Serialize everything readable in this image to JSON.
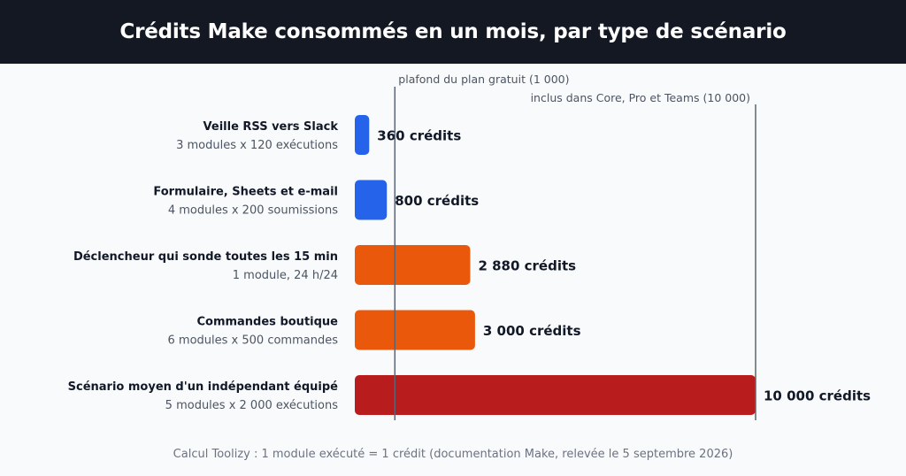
{
  "title": "Crédits Make consommés en un mois, par type de scénario",
  "footnote": "Calcul Toolizy : 1 module exécuté = 1 crédit (documentation Make, relevée le 5 septembre 2026)",
  "colors": {
    "header_bg": "#131823",
    "blue": "#2563eb",
    "orange": "#ea580c",
    "red": "#b91c1c",
    "reference_line": "#5b6472",
    "label_dark": "#111827",
    "label_muted": "#4b5563"
  },
  "chart_data": {
    "type": "bar",
    "orientation": "horizontal",
    "xlim": [
      0,
      10000
    ],
    "grid": false,
    "categories": [
      "Veille RSS vers Slack",
      "Formulaire, Sheets et e-mail",
      "Déclencheur qui sonde toutes les 15 min",
      "Commandes boutique",
      "Scénario moyen d'un indépendant équipé"
    ],
    "subtitles": [
      "3 modules x 120 exécutions",
      "4 modules x 200 soumissions",
      "1 module, 24 h/24",
      "6 modules x 500 commandes",
      "5 modules x 2 000 exécutions"
    ],
    "values": [
      360,
      800,
      2880,
      3000,
      10000
    ],
    "data_labels": [
      "360 crédits",
      "800 crédits",
      "2 880 crédits",
      "3 000 crédits",
      "10 000 crédits"
    ],
    "bar_colors": [
      "#2563eb",
      "#2563eb",
      "#ea580c",
      "#ea580c",
      "#b91c1c"
    ],
    "reference_lines": [
      {
        "value": 1000,
        "label": "plafond du plan gratuit (1 000)"
      },
      {
        "value": 10000,
        "label": "inclus dans Core, Pro et Teams (10 000)"
      }
    ]
  }
}
